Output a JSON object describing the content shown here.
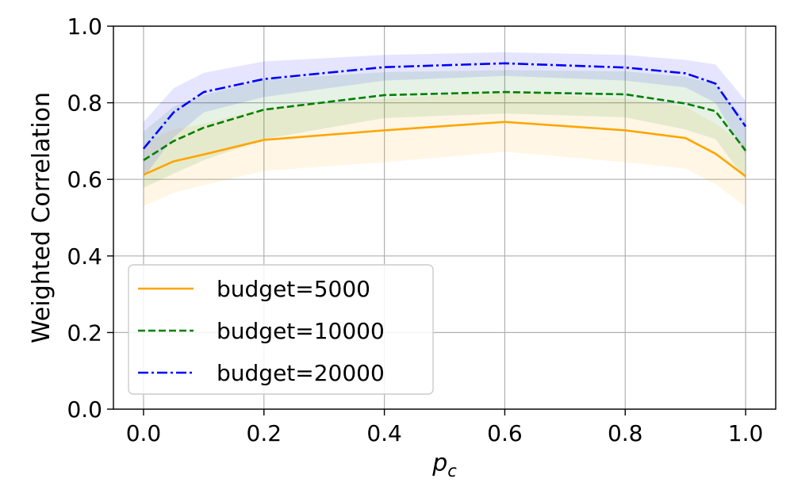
{
  "chart_data": {
    "type": "line",
    "xlabel_base": "p",
    "xlabel_sub": "c",
    "ylabel": "Weighted Correlation",
    "xlim": [
      -0.05,
      1.05
    ],
    "ylim": [
      0.0,
      1.0
    ],
    "x_ticks": [
      "0.0",
      "0.2",
      "0.4",
      "0.6",
      "0.8",
      "1.0"
    ],
    "y_ticks": [
      "0.0",
      "0.2",
      "0.4",
      "0.6",
      "0.8",
      "1.0"
    ],
    "grid": true,
    "legend_position": "lower-left",
    "x": [
      0.0,
      0.05,
      0.1,
      0.2,
      0.4,
      0.6,
      0.8,
      0.9,
      0.95,
      1.0
    ],
    "series": [
      {
        "name": "budget=5000",
        "color": "#ffa500",
        "dash": "solid",
        "values": [
          0.612,
          0.647,
          0.665,
          0.703,
          0.728,
          0.75,
          0.728,
          0.708,
          0.667,
          0.608
        ],
        "upper": [
          0.695,
          0.73,
          0.745,
          0.785,
          0.81,
          0.828,
          0.81,
          0.79,
          0.745,
          0.69
        ],
        "lower": [
          0.53,
          0.565,
          0.585,
          0.622,
          0.645,
          0.672,
          0.645,
          0.628,
          0.588,
          0.528
        ]
      },
      {
        "name": "budget=10000",
        "color": "#008000",
        "dash": "dashed",
        "values": [
          0.65,
          0.7,
          0.735,
          0.782,
          0.82,
          0.828,
          0.822,
          0.798,
          0.778,
          0.675
        ],
        "upper": [
          0.725,
          0.79,
          0.82,
          0.86,
          0.88,
          0.885,
          0.882,
          0.868,
          0.848,
          0.752
        ],
        "lower": [
          0.578,
          0.615,
          0.65,
          0.705,
          0.76,
          0.772,
          0.762,
          0.73,
          0.705,
          0.6
        ]
      },
      {
        "name": "budget=20000",
        "color": "#0000ff",
        "dash": "dashdot",
        "values": [
          0.68,
          0.775,
          0.828,
          0.862,
          0.893,
          0.903,
          0.892,
          0.877,
          0.85,
          0.738
        ],
        "upper": [
          0.75,
          0.838,
          0.878,
          0.908,
          0.925,
          0.932,
          0.925,
          0.912,
          0.9,
          0.805
        ],
        "lower": [
          0.605,
          0.71,
          0.775,
          0.815,
          0.858,
          0.87,
          0.858,
          0.84,
          0.8,
          0.665
        ]
      }
    ]
  }
}
